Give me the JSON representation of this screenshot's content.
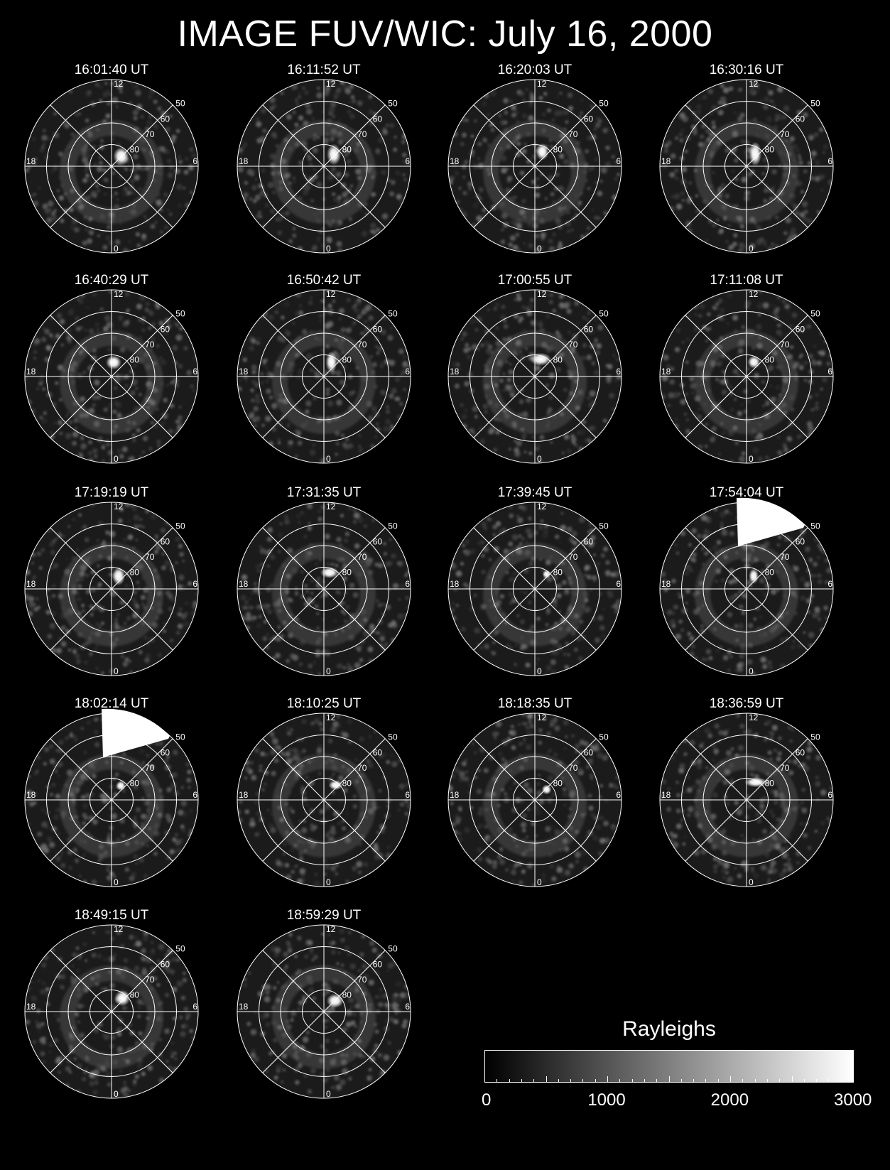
{
  "title": "IMAGE FUV/WIC: July 16, 2000",
  "grid_labels": {
    "hours": [
      "12",
      "6",
      "0",
      "18"
    ],
    "latitudes": [
      "50",
      "60",
      "70",
      "80"
    ]
  },
  "panels": [
    {
      "time": "16:01:40 UT",
      "spot_angle": 35,
      "spot_r": 0.08,
      "spot_w": 22,
      "spot_h": 26,
      "saturation": "none"
    },
    {
      "time": "16:11:52 UT",
      "spot_angle": 30,
      "spot_r": 0.1,
      "spot_w": 20,
      "spot_h": 30,
      "saturation": "none"
    },
    {
      "time": "16:20:03 UT",
      "spot_angle": 10,
      "spot_r": 0.12,
      "spot_w": 18,
      "spot_h": 24,
      "saturation": "none"
    },
    {
      "time": "16:30:16 UT",
      "spot_angle": 20,
      "spot_r": 0.1,
      "spot_w": 18,
      "spot_h": 34,
      "saturation": "none"
    },
    {
      "time": "16:40:29 UT",
      "spot_angle": 340,
      "spot_r": 0.12,
      "spot_w": 22,
      "spot_h": 20,
      "saturation": "none"
    },
    {
      "time": "16:50:42 UT",
      "spot_angle": 10,
      "spot_r": 0.12,
      "spot_w": 16,
      "spot_h": 30,
      "saturation": "none"
    },
    {
      "time": "17:00:55 UT",
      "spot_angle": 0,
      "spot_r": 0.15,
      "spot_w": 30,
      "spot_h": 18,
      "saturation": "none"
    },
    {
      "time": "17:11:08 UT",
      "spot_angle": 10,
      "spot_r": 0.12,
      "spot_w": 18,
      "spot_h": 18,
      "saturation": "none"
    },
    {
      "time": "17:19:19 UT",
      "spot_angle": 10,
      "spot_r": 0.1,
      "spot_w": 18,
      "spot_h": 26,
      "saturation": "none"
    },
    {
      "time": "17:31:35 UT",
      "spot_angle": 0,
      "spot_r": 0.14,
      "spot_w": 26,
      "spot_h": 16,
      "saturation": "none"
    },
    {
      "time": "17:39:45 UT",
      "spot_angle": 30,
      "spot_r": 0.14,
      "spot_w": 12,
      "spot_h": 12,
      "saturation": "none"
    },
    {
      "time": "17:54:04 UT",
      "spot_angle": 10,
      "spot_r": 0.1,
      "spot_w": 14,
      "spot_h": 22,
      "saturation": "dayside"
    },
    {
      "time": "18:02:14 UT",
      "spot_angle": 20,
      "spot_r": 0.12,
      "spot_w": 14,
      "spot_h": 14,
      "saturation": "dayside"
    },
    {
      "time": "18:10:25 UT",
      "spot_angle": 30,
      "spot_r": 0.14,
      "spot_w": 20,
      "spot_h": 14,
      "saturation": "none"
    },
    {
      "time": "18:18:35 UT",
      "spot_angle": 45,
      "spot_r": 0.1,
      "spot_w": 14,
      "spot_h": 14,
      "saturation": "none"
    },
    {
      "time": "18:36:59 UT",
      "spot_angle": 15,
      "spot_r": 0.16,
      "spot_w": 32,
      "spot_h": 14,
      "saturation": "none"
    },
    {
      "time": "18:49:15 UT",
      "spot_angle": 30,
      "spot_r": 0.12,
      "spot_w": 22,
      "spot_h": 22,
      "saturation": "none"
    },
    {
      "time": "18:59:29 UT",
      "spot_angle": 40,
      "spot_r": 0.1,
      "spot_w": 24,
      "spot_h": 20,
      "saturation": "none"
    }
  ],
  "colorbar": {
    "title": "Rayleighs",
    "min": 0,
    "max": 3000,
    "tick_labels": [
      "0",
      "1000",
      "2000",
      "3000"
    ],
    "colormap": [
      "#000000",
      "#ffffff"
    ]
  }
}
